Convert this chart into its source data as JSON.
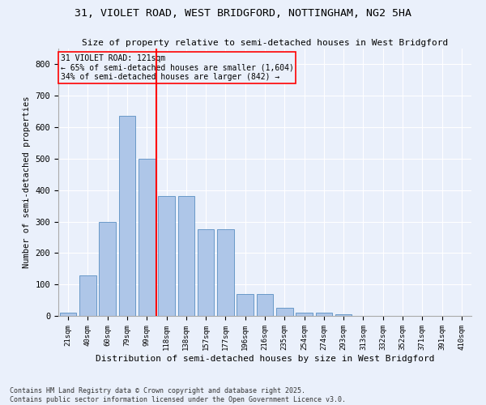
{
  "title1": "31, VIOLET ROAD, WEST BRIDGFORD, NOTTINGHAM, NG2 5HA",
  "title2": "Size of property relative to semi-detached houses in West Bridgford",
  "xlabel": "Distribution of semi-detached houses by size in West Bridgford",
  "ylabel": "Number of semi-detached properties",
  "bar_labels": [
    "21sqm",
    "40sqm",
    "60sqm",
    "79sqm",
    "99sqm",
    "118sqm",
    "138sqm",
    "157sqm",
    "177sqm",
    "196sqm",
    "216sqm",
    "235sqm",
    "254sqm",
    "274sqm",
    "293sqm",
    "313sqm",
    "332sqm",
    "352sqm",
    "371sqm",
    "391sqm",
    "410sqm"
  ],
  "bar_values": [
    10,
    128,
    300,
    635,
    500,
    382,
    382,
    275,
    275,
    70,
    70,
    25,
    10,
    10,
    5,
    0,
    0,
    0,
    0,
    0,
    0
  ],
  "bar_color": "#aec6e8",
  "bar_edgecolor": "#5a8fc2",
  "vline_x_index": 5,
  "vline_color": "red",
  "annotation_title": "31 VIOLET ROAD: 121sqm",
  "annotation_line1": "← 65% of semi-detached houses are smaller (1,604)",
  "annotation_line2": "34% of semi-detached houses are larger (842) →",
  "annotation_box_color": "red",
  "ylim": [
    0,
    850
  ],
  "yticks": [
    0,
    100,
    200,
    300,
    400,
    500,
    600,
    700,
    800
  ],
  "footnote1": "Contains HM Land Registry data © Crown copyright and database right 2025.",
  "footnote2": "Contains public sector information licensed under the Open Government Licence v3.0.",
  "bg_color": "#eaf0fb",
  "grid_color": "#ffffff"
}
